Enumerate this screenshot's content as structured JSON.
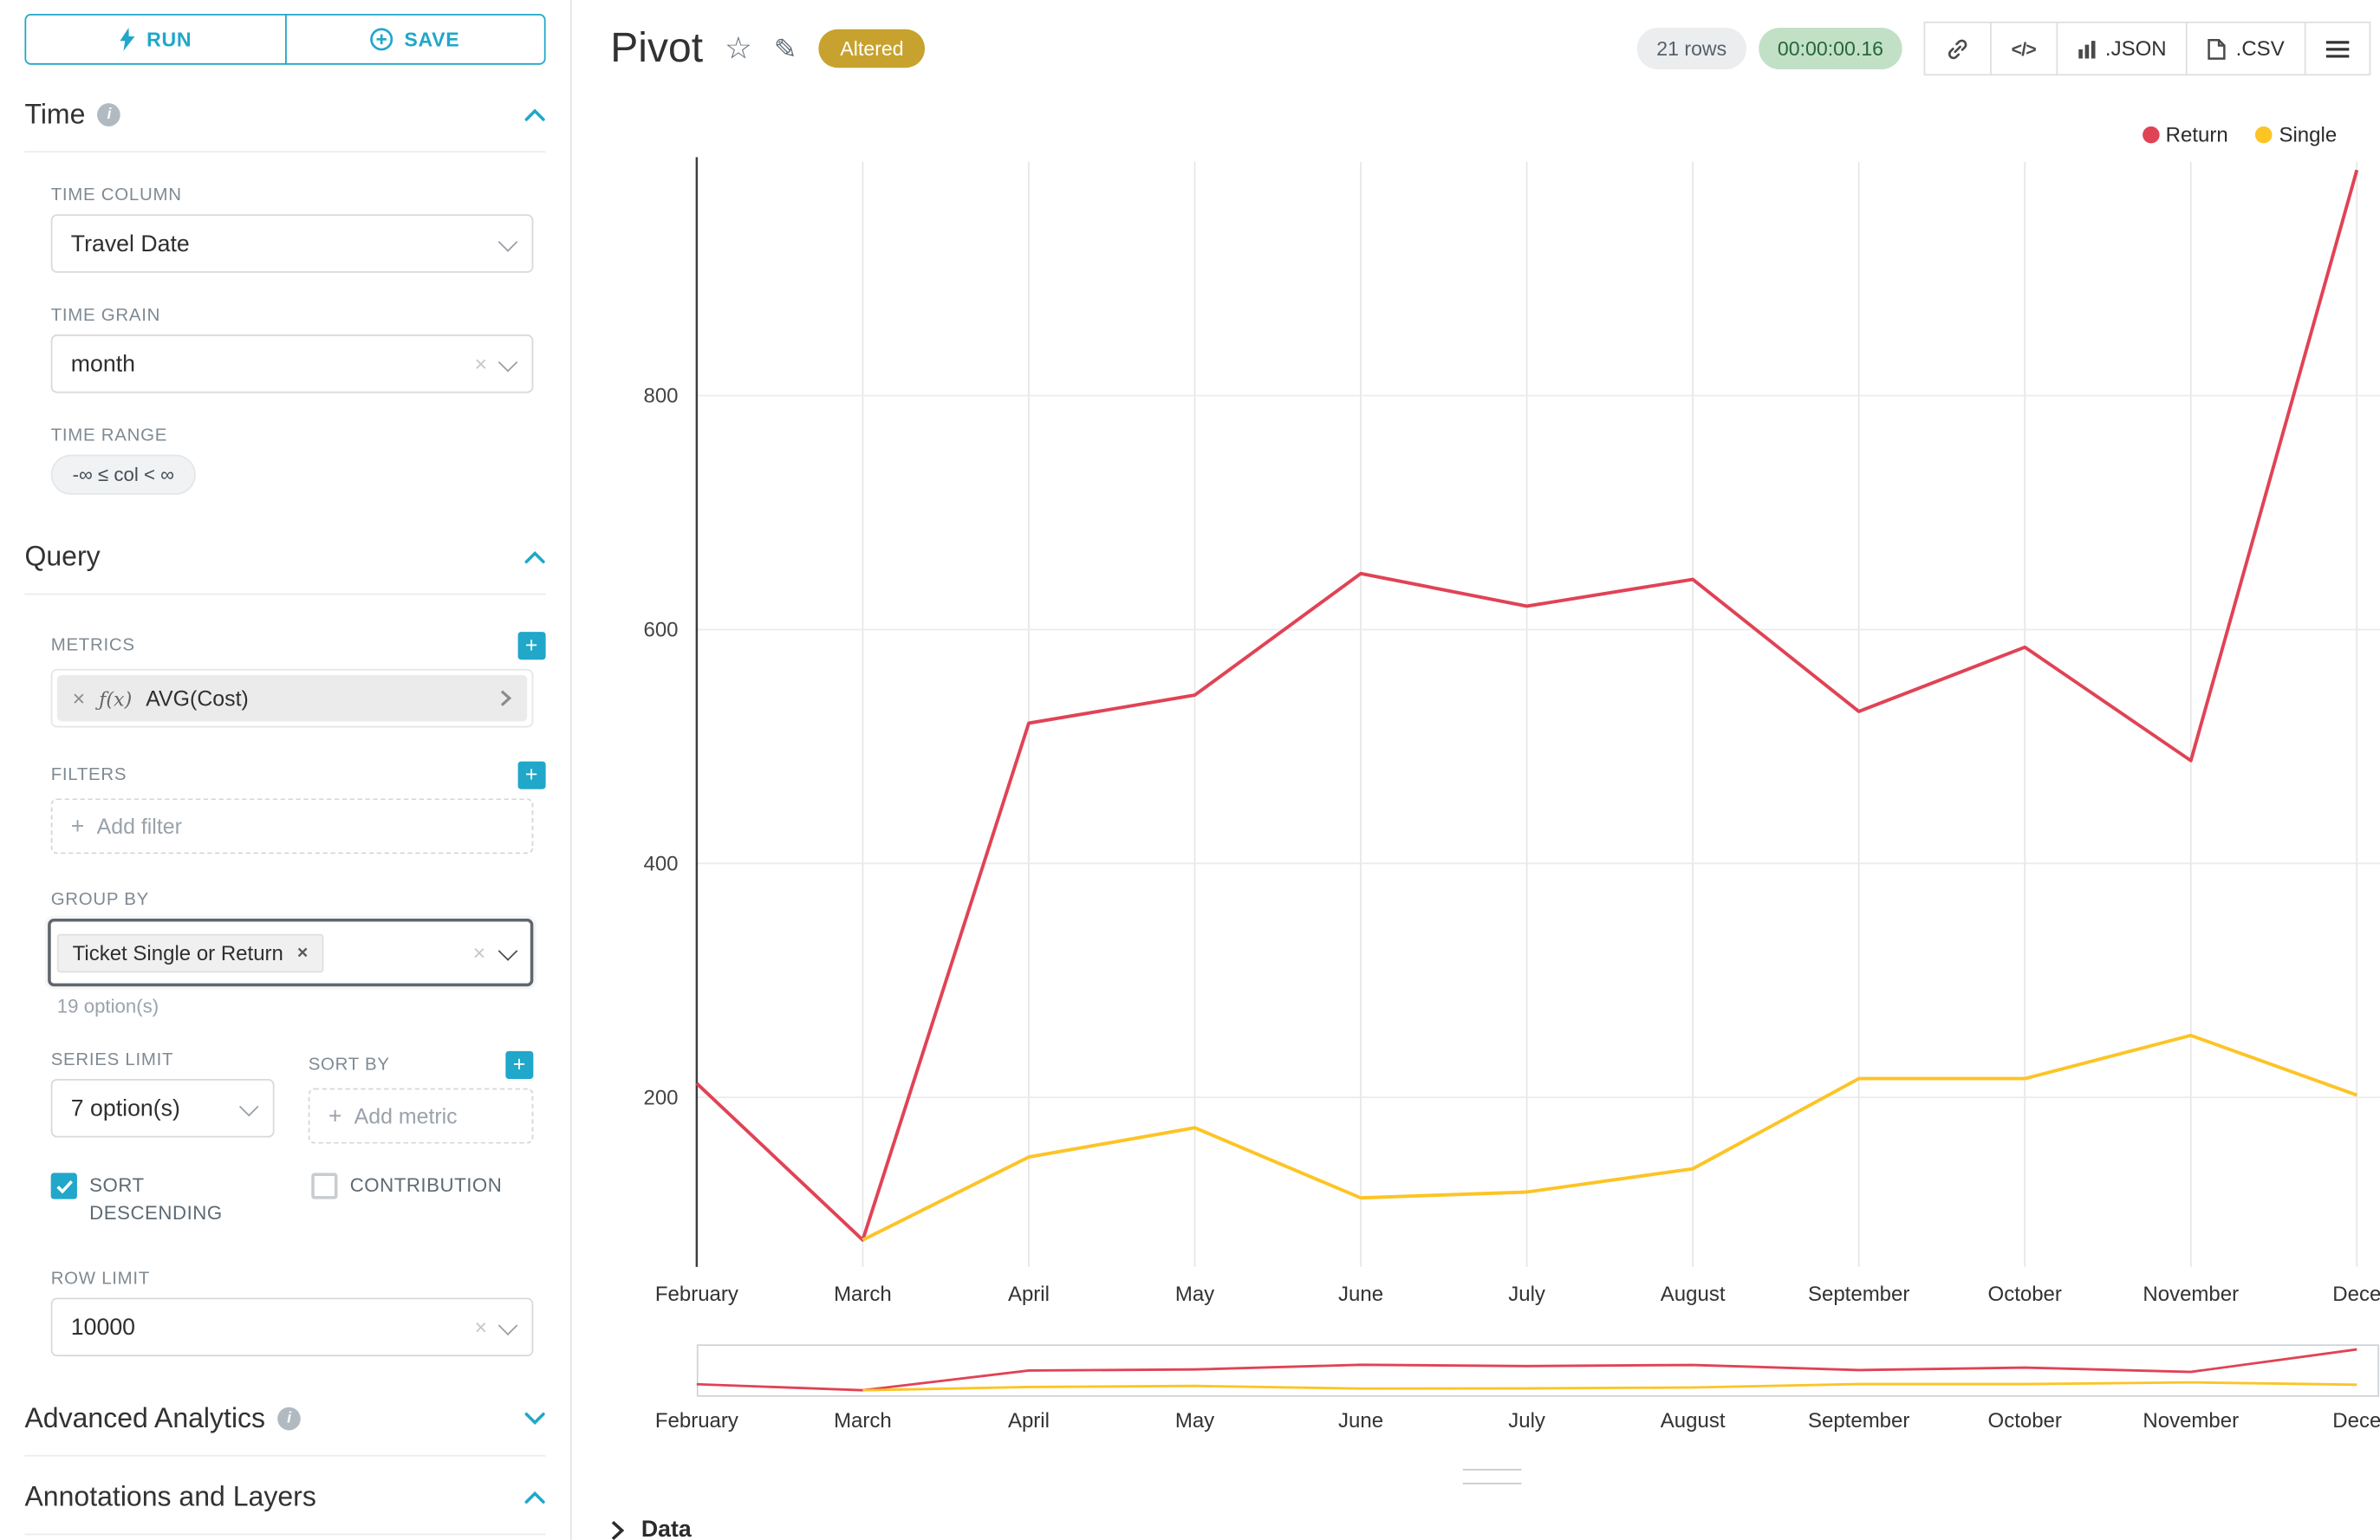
{
  "toolbar": {
    "run": "RUN",
    "save": "SAVE"
  },
  "sections": {
    "time": {
      "title": "Time"
    },
    "query": {
      "title": "Query"
    },
    "advanced": {
      "title": "Advanced Analytics"
    },
    "annotations": {
      "title": "Annotations and Layers"
    }
  },
  "fields": {
    "time_column": {
      "label": "TIME COLUMN",
      "value": "Travel Date"
    },
    "time_grain": {
      "label": "TIME GRAIN",
      "value": "month"
    },
    "time_range": {
      "label": "TIME RANGE",
      "value": "-∞ ≤ col < ∞"
    },
    "metrics": {
      "label": "METRICS",
      "fx": "ƒ(x)",
      "value": "AVG(Cost)"
    },
    "filters": {
      "label": "FILTERS",
      "placeholder": "Add filter"
    },
    "group_by": {
      "label": "GROUP BY",
      "value": "Ticket Single or Return",
      "hint": "19 option(s)"
    },
    "series_limit": {
      "label": "SERIES LIMIT",
      "value": "7 option(s)"
    },
    "sort_by": {
      "label": "SORT BY",
      "placeholder": "Add metric"
    },
    "sort_descending": {
      "label": "SORT DESCENDING",
      "checked": true
    },
    "contribution": {
      "label": "CONTRIBUTION",
      "checked": false
    },
    "row_limit": {
      "label": "ROW LIMIT",
      "value": "10000"
    }
  },
  "header": {
    "title": "Pivot",
    "badge": "Altered",
    "rows": "21 rows",
    "timer": "00:00:00.16",
    "code_label": "</>",
    "export_json": ".JSON",
    "export_csv": ".CSV"
  },
  "footer": {
    "data_label": "Data"
  },
  "colors": {
    "primary": "#20a7c9",
    "return_series": "#e04355",
    "single_series": "#fcc425",
    "altered_badge": "#c7a22e",
    "timer_green": "#c1e0c6"
  },
  "chart_data": {
    "type": "line",
    "title": "Pivot",
    "categories": [
      "February",
      "March",
      "April",
      "May",
      "June",
      "July",
      "August",
      "September",
      "October",
      "November",
      "Dece"
    ],
    "series": [
      {
        "name": "Return",
        "color": "#e04355",
        "values": [
          212,
          78,
          520,
          544,
          648,
          620,
          643,
          530,
          585,
          488,
          993
        ]
      },
      {
        "name": "Single",
        "color": "#fcc425",
        "values": [
          null,
          78,
          149,
          174,
          114,
          119,
          139,
          216,
          216,
          253,
          202
        ]
      }
    ],
    "yticks": [
      200,
      400,
      600,
      800
    ],
    "ylim": [
      55,
      1000
    ],
    "xlabel": "",
    "ylabel": "",
    "grid": true,
    "legend_position": "top-right"
  }
}
